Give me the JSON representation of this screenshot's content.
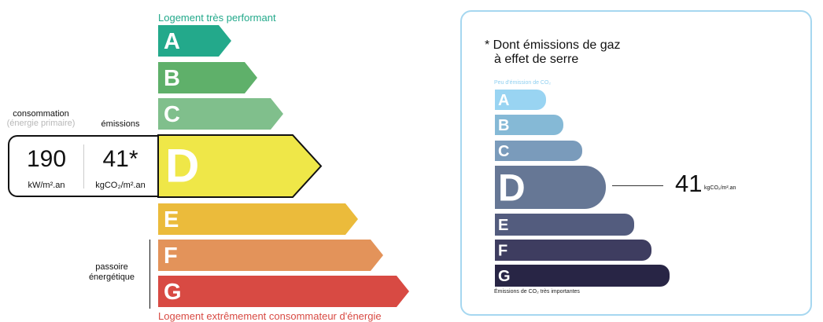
{
  "energy_label": {
    "top_caption": "Logement très performant",
    "bottom_caption": "Logement extrêmement consommateur d'énergie",
    "consumption_label": "consommation",
    "consumption_sub": "(énergie primaire)",
    "emissions_label": "émissions",
    "consumption_value": "190",
    "consumption_unit": "kW/m².an",
    "emissions_value": "41*",
    "emissions_unit": "kgCO₂/m².an",
    "passoire_label": "passoire énergétique",
    "current_class": "D",
    "classes": [
      {
        "letter": "A",
        "color": "#23a98b"
      },
      {
        "letter": "B",
        "color": "#5fb06a"
      },
      {
        "letter": "C",
        "color": "#80bf8c"
      },
      {
        "letter": "D",
        "color": "#efe748"
      },
      {
        "letter": "E",
        "color": "#ebbb3b"
      },
      {
        "letter": "F",
        "color": "#e3935a"
      },
      {
        "letter": "G",
        "color": "#d84a43"
      }
    ]
  },
  "ges_label": {
    "title_line1": "* Dont émissions de gaz",
    "title_line2": "à effet de serre",
    "top_caption": "Peu d'émission de CO₂",
    "bottom_caption": "Émissions de CO₂ très importantes",
    "value": "41",
    "unit": "kgCO₂/m².an",
    "current_class": "D",
    "classes": [
      {
        "letter": "A",
        "color": "#99d4f2"
      },
      {
        "letter": "B",
        "color": "#85b9d6"
      },
      {
        "letter": "C",
        "color": "#7a9bbb"
      },
      {
        "letter": "D",
        "color": "#667795"
      },
      {
        "letter": "E",
        "color": "#535c7e"
      },
      {
        "letter": "F",
        "color": "#3e3d60"
      },
      {
        "letter": "G",
        "color": "#282545"
      }
    ]
  }
}
